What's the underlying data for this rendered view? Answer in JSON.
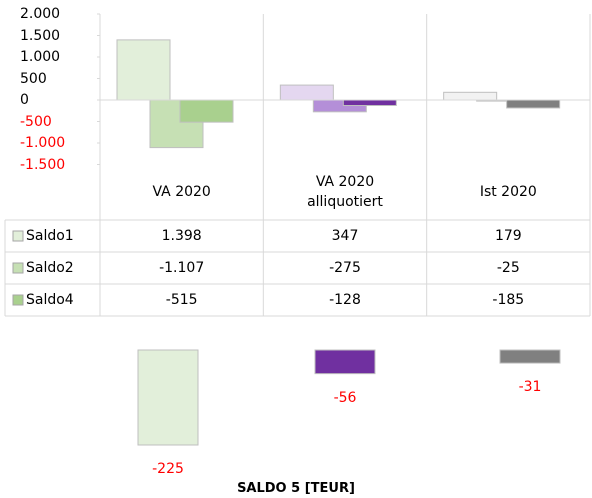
{
  "chart_data": [
    {
      "type": "bar",
      "categories": [
        "VA 2020",
        "VA 2020 alliquotiert",
        "Ist 2020"
      ],
      "ylim": [
        -1500,
        2000
      ],
      "yticks": [
        {
          "value": -1500,
          "label": "-1.500"
        },
        {
          "value": -1000,
          "label": "-1.000"
        },
        -500,
        0,
        500,
        {
          "value": 1000,
          "label": "1.000"
        },
        {
          "value": 1500,
          "label": "1.500"
        },
        {
          "value": 2000,
          "label": "2.000"
        }
      ],
      "negative_tick_color": "#ff0000",
      "series": [
        {
          "name": "Saldo1",
          "color": "#e2efda",
          "colors": [
            "#e2efda",
            "#e4d7f0",
            "#f2f2f2"
          ],
          "values": [
            1398,
            347,
            179
          ],
          "value_labels": [
            "1.398",
            "347",
            "179"
          ]
        },
        {
          "name": "Saldo2",
          "color": "#c6e0b4",
          "colors": [
            "#c6e0b4",
            "#b48fd8",
            "#d9d9d9"
          ],
          "values": [
            -1107,
            -275,
            -25
          ],
          "value_labels": [
            "-1.107",
            "-275",
            "-25"
          ]
        },
        {
          "name": "Saldo4",
          "color": "#a9d08e",
          "colors": [
            "#a9d08e",
            "#7030a0",
            "#808080"
          ],
          "values": [
            -515,
            -128,
            -185
          ],
          "value_labels": [
            "-515",
            "-128",
            "-185"
          ]
        }
      ]
    },
    {
      "type": "bar",
      "title": "SALDO 5 [TEUR]",
      "values": [
        -225,
        -56,
        -31
      ],
      "colors": [
        "#e2efda",
        "#7030a0",
        "#808080"
      ],
      "value_label_color": "#ff0000"
    }
  ]
}
